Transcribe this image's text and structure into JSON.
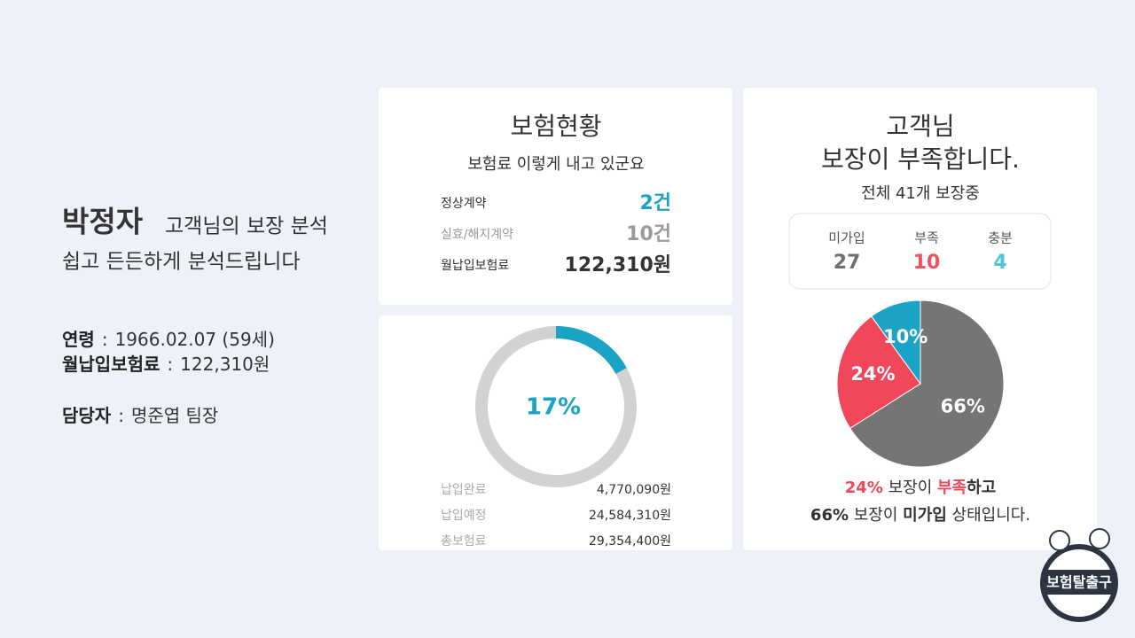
{
  "profile": {
    "name": "박정자",
    "title": "고객님의 보장 분석",
    "subtitle": "쉽고 든든하게 분석드립니다",
    "separator": ":",
    "fields": [
      {
        "label": "연령",
        "value": "1966.02.07 (59세)"
      },
      {
        "label": "월납입보험료",
        "value": "122,310원"
      },
      {
        "label": "담당자",
        "value": "명준엽 팀장"
      }
    ]
  },
  "status_card": {
    "title": "보험현황",
    "subtitle": "보험료 이렇게 내고 있군요",
    "rows": [
      {
        "label": "정상계약",
        "value": "2건",
        "color": "#1aa3c4"
      },
      {
        "label": "실효/해지계약",
        "value": "10건",
        "color": "#9a9a9a"
      },
      {
        "label": "월납입보험료",
        "value": "122,310원",
        "color": "#333333"
      }
    ]
  },
  "payment_card": {
    "donut": {
      "value": 17,
      "label": "17%",
      "color": "#1aa3c4",
      "track_color": "#d2d2d2"
    },
    "rows": [
      {
        "label": "납입완료",
        "value": "4,770,090원"
      },
      {
        "label": "납입예정",
        "value": "24,584,310원"
      },
      {
        "label": "총보험료",
        "value": "29,354,400원"
      }
    ]
  },
  "coverage_card": {
    "title_lines": [
      "고객님",
      "보장이 부족합니다."
    ],
    "subtitle": "전체 41개 보장중",
    "stats": [
      {
        "label": "미가입",
        "value": 27,
        "color": "#6f6f6f"
      },
      {
        "label": "부족",
        "value": 10,
        "color": "#f0505f"
      },
      {
        "label": "충분",
        "value": 4,
        "color": "#4cc3d6"
      }
    ],
    "pie": {
      "slices": [
        {
          "value": 66,
          "label": "66%",
          "color": "#757575"
        },
        {
          "value": 24,
          "label": "24%",
          "color": "#f0485a"
        },
        {
          "value": 10,
          "label": "10%",
          "color": "#1aa3c4"
        }
      ]
    },
    "summary": [
      [
        {
          "text": "24%",
          "color": "#f0485a"
        },
        {
          "text": " 보장이 ",
          "color": "#333333"
        },
        {
          "text": "부족",
          "color": "#f0485a"
        },
        {
          "text": "하고",
          "color": "#333333"
        }
      ],
      [
        {
          "text": "66%",
          "color": "#333333"
        },
        {
          "text": " 보장이 ",
          "color": "#333333"
        },
        {
          "text": "미가입",
          "color": "#333333"
        },
        {
          "text": " 상태입니다.",
          "color": "#333333"
        }
      ]
    ]
  },
  "logo": {
    "text": "보험탈출구"
  }
}
